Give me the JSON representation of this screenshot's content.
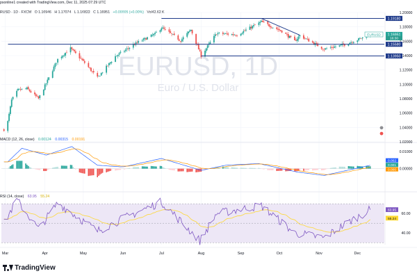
{
  "header": {
    "credit": "psonline1 created with TradingView.com, Dec 11, 2025 07:29 UTC",
    "symbol_line": "RUSD · 1D · FXCM",
    "open": "O 1.16946",
    "high": "H 1.17074",
    "low": "L 1.16822",
    "close": "C 1.16951",
    "change": "+0.00005 (+0.00%)",
    "volume": "Vol42.62 K"
  },
  "watermark": {
    "symbol": "EURUSD, 1D",
    "name": "Euro / U.S. Dollar"
  },
  "colors": {
    "up": "#26a69a",
    "down": "#ef5350",
    "macd_line": "#2962ff",
    "signal_line": "#ff9800",
    "rsi_line": "#7e57c2",
    "rsi_ma": "#fdd835",
    "level_line": "#1e3a8a",
    "rsi_band": "#ede7f6"
  },
  "chart_data": [
    {
      "type": "candlestick",
      "title": "EURUSD, 1D",
      "x_labels": [
        "Mar",
        "Apr",
        "May",
        "Jun",
        "Jul",
        "Aug",
        "Sep",
        "Oct",
        "Nov",
        "Dec"
      ],
      "y_ticks": [
        "1.20000",
        "1.18000",
        "1.16000",
        "1.14000",
        "1.12000",
        "1.10000",
        "1.08000",
        "1.06000",
        "1.04000",
        "1.02000"
      ],
      "ylim": [
        1.02,
        1.2
      ],
      "levels": [
        {
          "value": 1.1918,
          "label": "1.19180"
        },
        {
          "value": 1.1558,
          "label": "1.15580"
        },
        {
          "value": 1.1395,
          "label": "1.13950"
        }
      ],
      "price_tags": [
        {
          "label": "EURUSD",
          "value": "1.16951",
          "value_num": 1.16951
        },
        {
          "label": "",
          "value": "16:30",
          "value_num": 1.1645
        }
      ],
      "trendline": {
        "from": [
          "Sep 17",
          1.1918
        ],
        "to": [
          "Oct 17",
          1.1685
        ]
      },
      "key_points": [
        {
          "date": "Feb 28",
          "close": 1.037
        },
        {
          "date": "Mar 3",
          "close": 1.048
        },
        {
          "date": "Mar 6",
          "close": 1.078
        },
        {
          "date": "Mar 11",
          "close": 1.092
        },
        {
          "date": "Mar 18",
          "close": 1.094
        },
        {
          "date": "Mar 27",
          "close": 1.08
        },
        {
          "date": "Apr 3",
          "close": 1.105
        },
        {
          "date": "Apr 11",
          "close": 1.135
        },
        {
          "date": "Apr 21",
          "close": 1.15
        },
        {
          "date": "May 2",
          "close": 1.13
        },
        {
          "date": "May 12",
          "close": 1.109
        },
        {
          "date": "May 26",
          "close": 1.139
        },
        {
          "date": "Jun 12",
          "close": 1.158
        },
        {
          "date": "Jun 26",
          "close": 1.17
        },
        {
          "date": "Jul 1",
          "close": 1.179
        },
        {
          "date": "Jul 16",
          "close": 1.161
        },
        {
          "date": "Jul 24",
          "close": 1.176
        },
        {
          "date": "Aug 1",
          "close": 1.14
        },
        {
          "date": "Aug 13",
          "close": 1.171
        },
        {
          "date": "Aug 29",
          "close": 1.169
        },
        {
          "date": "Sep 17",
          "close": 1.187
        },
        {
          "date": "Oct 3",
          "close": 1.174
        },
        {
          "date": "Oct 13",
          "close": 1.16
        },
        {
          "date": "Oct 17",
          "close": 1.168
        },
        {
          "date": "Nov 5",
          "close": 1.149
        },
        {
          "date": "Nov 20",
          "close": 1.155
        },
        {
          "date": "Dec 1",
          "close": 1.162
        },
        {
          "date": "Dec 11",
          "close": 1.1695
        }
      ]
    },
    {
      "type": "histogram",
      "title": "MACD (12, 26, close)",
      "values_text": [
        "0.00124",
        "0.00315",
        "0.00191"
      ],
      "y_ticks": [
        "0.01000",
        "0.00000"
      ],
      "ylim": [
        -0.012,
        0.015
      ],
      "price_tags": [
        "0.002",
        "0.001",
        "0.000"
      ],
      "key_points": [
        {
          "date": "Mar 3",
          "macd": 0.004
        },
        {
          "date": "Mar 14",
          "macd": 0.012
        },
        {
          "date": "Apr 2",
          "macd": 0.008
        },
        {
          "date": "Apr 22",
          "macd": 0.013
        },
        {
          "date": "May 12",
          "macd": 0.002
        },
        {
          "date": "Jun 1",
          "macd": 0.001
        },
        {
          "date": "Jul 1",
          "macd": 0.006
        },
        {
          "date": "Aug 1",
          "macd": -0.001
        },
        {
          "date": "Aug 20",
          "macd": 0.002
        },
        {
          "date": "Sep 15",
          "macd": 0.003
        },
        {
          "date": "Oct 15",
          "macd": -0.002
        },
        {
          "date": "Nov 5",
          "macd": -0.004
        },
        {
          "date": "Dec 11",
          "macd": 0.002
        }
      ]
    },
    {
      "type": "line",
      "title": "RSI (14, close)",
      "values_text": [
        "63.95",
        "55.24"
      ],
      "y_ticks": [
        "60.00",
        "40.00"
      ],
      "ylim": [
        28,
        78
      ],
      "price_tags": [
        "63.95",
        "55.24"
      ],
      "key_points": [
        {
          "date": "Feb 28",
          "rsi": 50
        },
        {
          "date": "Mar 10",
          "rsi": 74
        },
        {
          "date": "Mar 27",
          "rsi": 44
        },
        {
          "date": "Apr 11",
          "rsi": 71
        },
        {
          "date": "May 12",
          "rsi": 42
        },
        {
          "date": "Jun 3",
          "rsi": 56
        },
        {
          "date": "Jul 1",
          "rsi": 72
        },
        {
          "date": "Jul 31",
          "rsi": 32
        },
        {
          "date": "Aug 13",
          "rsi": 60
        },
        {
          "date": "Sep 17",
          "rsi": 68
        },
        {
          "date": "Oct 13",
          "rsi": 40
        },
        {
          "date": "Nov 5",
          "rsi": 35
        },
        {
          "date": "Nov 20",
          "rsi": 48
        },
        {
          "date": "Dec 11",
          "rsi": 63.95
        }
      ]
    }
  ],
  "footer": {
    "logo_text": "TradingView"
  }
}
